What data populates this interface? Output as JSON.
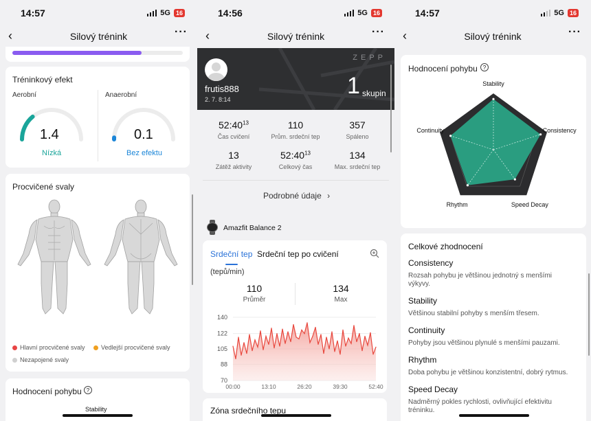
{
  "screens": [
    {
      "status": {
        "time": "14:57",
        "network": "5G",
        "battery": "16"
      },
      "nav": {
        "title": "Silový trénink"
      },
      "progress": {
        "fraction": 0.76
      },
      "training_effect": {
        "title": "Tréninkový efekt",
        "aerobic": {
          "label": "Aerobní",
          "value": "1.4",
          "status": "Nízká",
          "level": 0.28
        },
        "anaerobic": {
          "label": "Anaerobní",
          "value": "0.1",
          "status": "Bez efektu",
          "level": 0.02
        }
      },
      "muscles": {
        "title": "Procvičené svaly",
        "legend": [
          "Hlavní procvičené svaly",
          "Vedlejší procvičené svaly",
          "Nezapojené svaly"
        ],
        "colors": {
          "primary": "#e84545",
          "secondary": "#f0a020",
          "unused": "#d0d0d0"
        }
      },
      "movement_teaser": {
        "title": "Hodnocení pohybu",
        "axis_top": "Stability"
      }
    },
    {
      "status": {
        "time": "14:56",
        "network": "5G",
        "battery": "16"
      },
      "nav": {
        "title": "Silový trénink"
      },
      "hero": {
        "brand": "ZEPP",
        "user": "frutis888",
        "date": "2. 7. 8:14",
        "count": "1",
        "count_unit": "skupin"
      },
      "stats": [
        {
          "value": "52:40",
          "sup": "13",
          "label": "Čas cvičení"
        },
        {
          "value": "110",
          "sup": "",
          "label": "Prům. srdeční tep"
        },
        {
          "value": "357",
          "sup": "",
          "label": "Spáleno"
        },
        {
          "value": "13",
          "sup": "",
          "label": "Zátěž aktivity"
        },
        {
          "value": "52:40",
          "sup": "13",
          "label": "Celkový čas"
        },
        {
          "value": "134",
          "sup": "",
          "label": "Max. srdeční tep"
        }
      ],
      "details_link": "Podrobné údaje",
      "device": "Amazfit Balance 2",
      "hr_tabs": [
        "Srdeční tep",
        "Srdeční tep po cvičení"
      ],
      "hr_unit": "(tepů/min)",
      "hr_summary": [
        {
          "value": "110",
          "label": "Průměr"
        },
        {
          "value": "134",
          "label": "Max"
        }
      ],
      "zone_title": "Zóna srdečního tepu",
      "chart_data": {
        "type": "area",
        "title": "",
        "xlabel": "",
        "ylabel": "",
        "x_ticks": [
          "00:00",
          "13:10",
          "26:20",
          "39:30",
          "52:40"
        ],
        "y_ticks": [
          140,
          122,
          105,
          88,
          70
        ],
        "ylim": [
          70,
          140
        ],
        "color": "#e8463c",
        "x_minutes": [
          0,
          1,
          2,
          3,
          4,
          5,
          6,
          7,
          8,
          9,
          10,
          11,
          12,
          13,
          14,
          15,
          16,
          17,
          18,
          19,
          20,
          21,
          22,
          23,
          24,
          25,
          26,
          27,
          28,
          29,
          30,
          31,
          32,
          33,
          34,
          35,
          36,
          37,
          38,
          39,
          40,
          41,
          42,
          43,
          44,
          45,
          46,
          47,
          48,
          49,
          50,
          51,
          52
        ],
        "values": [
          108,
          94,
          118,
          98,
          112,
          100,
          121,
          103,
          115,
          107,
          125,
          104,
          119,
          110,
          128,
          106,
          122,
          108,
          127,
          111,
          124,
          113,
          132,
          118,
          116,
          126,
          122,
          134,
          112,
          119,
          129,
          110,
          121,
          100,
          118,
          105,
          124,
          102,
          114,
          99,
          126,
          108,
          117,
          111,
          131,
          113,
          122,
          103,
          119,
          109,
          123,
          99,
          107
        ]
      }
    },
    {
      "status": {
        "time": "14:57",
        "network": "5G",
        "battery": "16"
      },
      "nav": {
        "title": "Silový trénink"
      },
      "radar": {
        "title": "Hodnocení pohybu",
        "axes": [
          "Stability",
          "Consistency",
          "Speed Decay",
          "Rhythm",
          "Continuity"
        ],
        "values": [
          0.9,
          0.88,
          0.65,
          0.78,
          0.8
        ],
        "fill": "#2a9d80"
      },
      "overall": {
        "title": "Celkové zhodnocení",
        "items": [
          {
            "name": "Consistency",
            "desc": "Rozsah pohybu je většinou jednotný s menšími výkyvy."
          },
          {
            "name": "Stability",
            "desc": "Většinou stabilní pohyby s menším třesem."
          },
          {
            "name": "Continuity",
            "desc": "Pohyby jsou většinou plynulé s menšími pauzami."
          },
          {
            "name": "Rhythm",
            "desc": "Doba pohybu je většinou konzistentní, dobrý rytmus."
          },
          {
            "name": "Speed Decay",
            "desc": "Nadměrný pokles rychlosti, ovlivňující efektivitu tréninku."
          }
        ]
      }
    }
  ]
}
